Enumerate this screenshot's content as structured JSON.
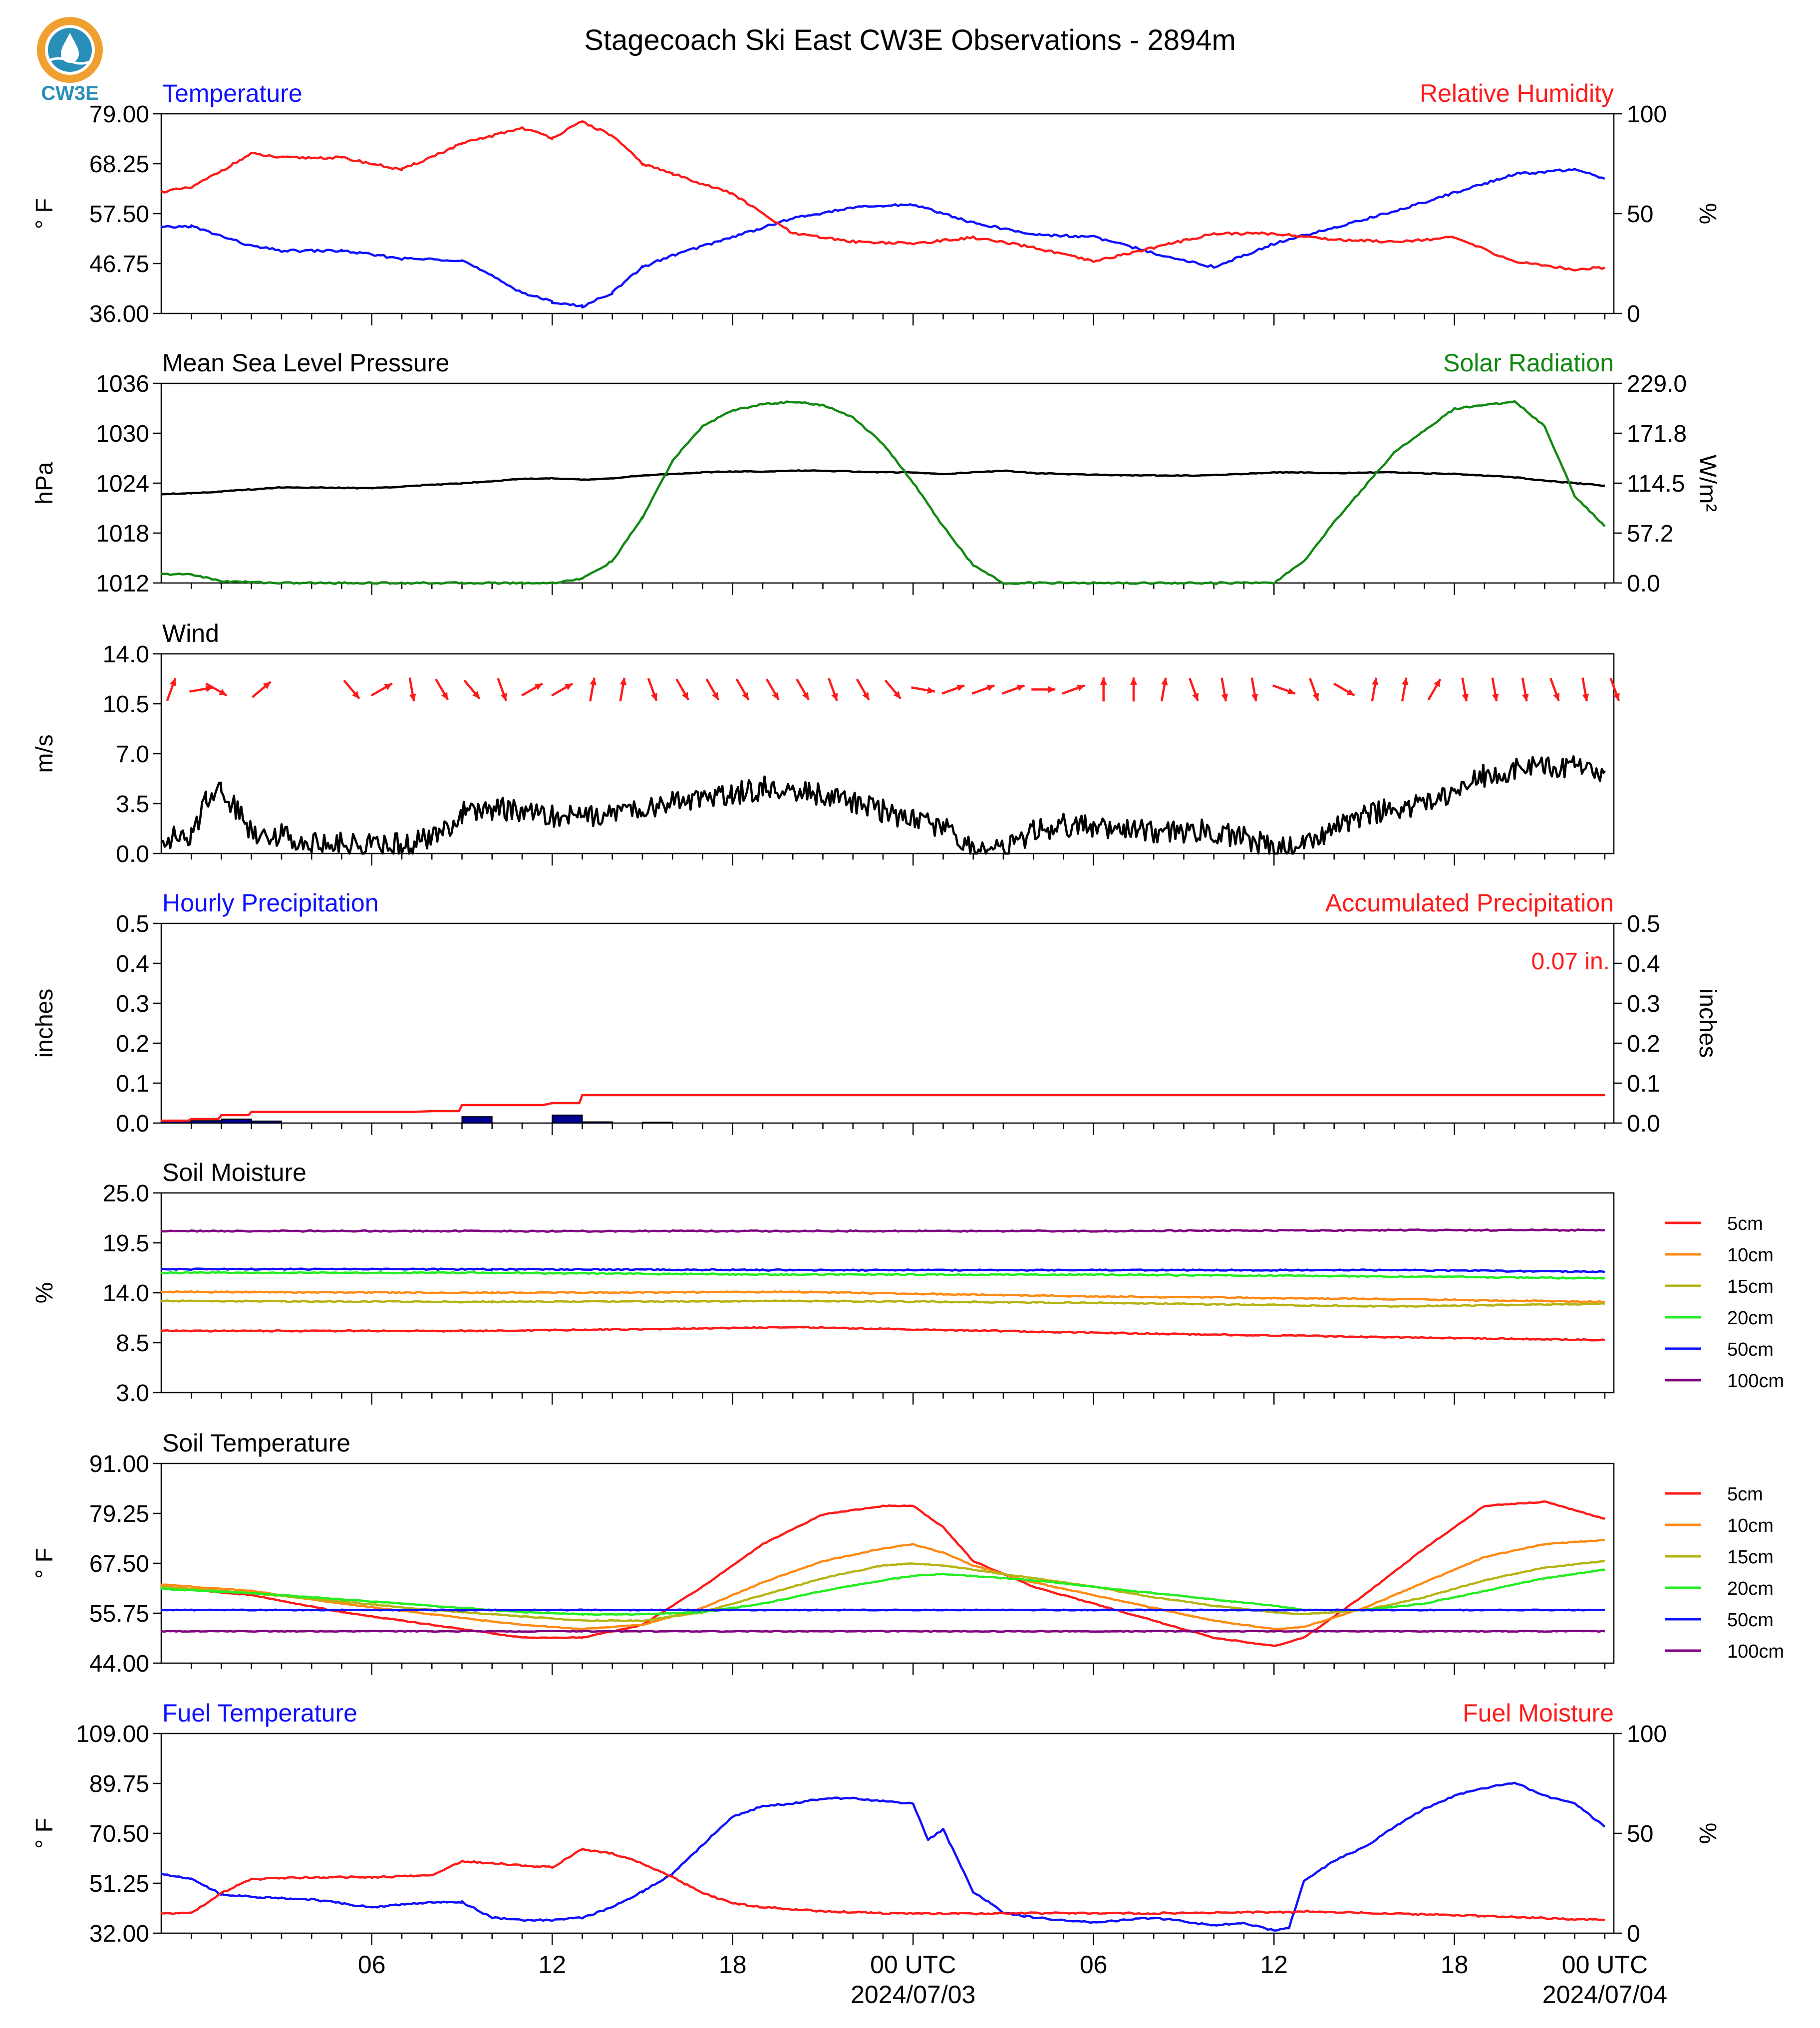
{
  "title": "Stagecoach Ski East CW3E Observations - 2894m",
  "logo": {
    "text": "CW3E",
    "color": "#2a8fb8",
    "accent": "#f0a030"
  },
  "colors": {
    "red": "#ff1a1a",
    "blue": "#1010ff",
    "green": "#118811",
    "black": "#000000",
    "orange": "#ff8a14",
    "olive": "#b4b414",
    "lime": "#22ee22",
    "purple": "#800080",
    "navy": "#000090"
  },
  "time_axis": {
    "tick_labels": [
      "06",
      "12",
      "18",
      "00 UTC",
      "06",
      "12",
      "18",
      "00 UTC"
    ],
    "date_labels": [
      "2024/07/03",
      "2024/07/04"
    ]
  },
  "chart_data": [
    {
      "id": "temp",
      "type": "line",
      "title_left": "Temperature",
      "title_right": "Relative Humidity",
      "ylabel": "° F",
      "ylabel2": "%",
      "yticks": [
        "79.00",
        "68.25",
        "57.50",
        "46.75",
        "36.00"
      ],
      "yticks2": [
        "100",
        "50",
        "0"
      ],
      "ylim": [
        36,
        79
      ],
      "ylim2": [
        0,
        100
      ],
      "x": [
        -1,
        0,
        2,
        3,
        5,
        7,
        9,
        11,
        12,
        13,
        14,
        15,
        16,
        18,
        20,
        22,
        24,
        26,
        28,
        30,
        32,
        34,
        36,
        38,
        40,
        42,
        44,
        46,
        47
      ],
      "series": [
        {
          "name": "Temperature",
          "color": "blue",
          "axis": "left",
          "values": [
            54.5,
            54.8,
            50.5,
            49.5,
            49.5,
            47.8,
            47.5,
            40.5,
            38.5,
            37.5,
            40.5,
            46,
            48.5,
            52.5,
            56.5,
            58.8,
            59.5,
            55.5,
            53,
            52.5,
            49,
            46,
            51,
            54.5,
            58,
            62,
            66,
            67,
            65
          ]
        },
        {
          "name": "Relative Humidity",
          "color": "red",
          "axis": "right",
          "values": [
            61,
            63,
            80,
            78,
            78,
            72,
            85,
            93,
            88,
            96,
            89,
            75,
            70,
            60,
            40,
            36,
            35,
            38,
            33,
            26,
            33,
            40,
            40,
            37,
            36,
            38,
            26,
            22,
            23
          ]
        }
      ]
    },
    {
      "id": "pressure",
      "type": "line",
      "title_left": "Mean Sea Level Pressure",
      "title_right": "Solar Radiation",
      "ylabel": "hPa",
      "ylabel2": "W/m²",
      "yticks": [
        "1036",
        "1030",
        "1024",
        "1018",
        "1012"
      ],
      "yticks2": [
        "229.0",
        "171.8",
        "114.5",
        "57.2",
        "0.0"
      ],
      "ylim": [
        1012,
        1036
      ],
      "ylim2": [
        0,
        229
      ],
      "x": [
        -1,
        0,
        1,
        3,
        6,
        9,
        11,
        12,
        13,
        14,
        15,
        16,
        17,
        18,
        19,
        20,
        21,
        22,
        23,
        24,
        25,
        26,
        27,
        28,
        30,
        33,
        35,
        36,
        37,
        38,
        40,
        42,
        44,
        45,
        46,
        47
      ],
      "series": [
        {
          "name": "Mean Sea Level Pressure",
          "color": "black",
          "axis": "left",
          "values": [
            1022.7,
            1022.8,
            1023,
            1023.5,
            1023.4,
            1024,
            1024.5,
            1024.6,
            1024.4,
            1024.6,
            1024.9,
            1025.1,
            1025.3,
            1025.4,
            1025.4,
            1025.5,
            1025.5,
            1025.4,
            1025.3,
            1025.3,
            1025.1,
            1025.3,
            1025.5,
            1025.2,
            1025,
            1024.9,
            1025.1,
            1025.3,
            1025.3,
            1025.2,
            1025.3,
            1025.1,
            1024.7,
            1024.3,
            1024.0,
            1023.7
          ]
        },
        {
          "name": "Solar Radiation",
          "color": "green",
          "axis": "right",
          "values": [
            10,
            10,
            2,
            0,
            0,
            0,
            0,
            0,
            5,
            25,
            75,
            140,
            180,
            198,
            205,
            208,
            204,
            190,
            160,
            115,
            65,
            20,
            0,
            0,
            0,
            0,
            0,
            0,
            25,
            70,
            150,
            200,
            208,
            180,
            100,
            65
          ]
        }
      ]
    },
    {
      "id": "wind",
      "type": "line",
      "title_left": "Wind",
      "ylabel": "m/s",
      "yticks": [
        "14.0",
        "10.5",
        "7.0",
        "3.5",
        "0.0"
      ],
      "ylim": [
        0,
        14
      ],
      "x": [
        -1,
        0,
        0.5,
        1,
        2,
        3,
        4,
        6,
        7,
        8,
        9,
        10,
        11,
        12,
        13,
        14,
        15,
        16,
        17,
        18,
        19,
        20,
        21,
        22,
        23,
        24,
        25,
        26,
        27,
        28,
        29,
        30,
        31,
        32,
        33,
        34,
        35,
        36,
        37,
        38,
        39,
        40,
        41,
        42,
        43,
        44,
        45,
        46,
        47
      ],
      "series": [
        {
          "name": "Wind Speed",
          "color": "black",
          "values": [
            1.2,
            1.0,
            4.0,
            4.6,
            1.6,
            1.3,
            0.8,
            0.6,
            0.6,
            1.0,
            2.8,
            3.2,
            3.0,
            2.6,
            2.6,
            3.0,
            3.0,
            3.6,
            3.8,
            4.2,
            4.6,
            4.6,
            4.0,
            3.6,
            3.0,
            2.4,
            1.8,
            0.3,
            0.1,
            1.5,
            2.0,
            1.8,
            1.8,
            1.5,
            1.6,
            1.5,
            1.2,
            0.3,
            0.4,
            2.0,
            2.6,
            3.2,
            3.6,
            4.2,
            5.5,
            6.0,
            6.2,
            6.0,
            5.8
          ]
        }
      ],
      "wind_barbs": {
        "description": "direction arrows",
        "x": [
          -1,
          0,
          0.5,
          2,
          5,
          6,
          7,
          8,
          9,
          10,
          11,
          12,
          13,
          14,
          15,
          16,
          17,
          18,
          19,
          20,
          21,
          22,
          23,
          24,
          25,
          26,
          27,
          28,
          29,
          30,
          31,
          32,
          33,
          34,
          35,
          36,
          37,
          38,
          39,
          40,
          41,
          42,
          43,
          44,
          45,
          46,
          47
        ],
        "angles_deg": [
          70,
          10,
          -30,
          40,
          -50,
          30,
          -80,
          -60,
          -50,
          -70,
          30,
          30,
          80,
          80,
          -70,
          -60,
          -60,
          -60,
          -60,
          -60,
          -70,
          -60,
          -50,
          -10,
          20,
          20,
          20,
          0,
          20,
          90,
          90,
          80,
          -70,
          -80,
          -80,
          -20,
          -70,
          -30,
          80,
          80,
          60,
          -80,
          -80,
          -80,
          -70,
          -80,
          -70
        ],
        "y_level": 11.5
      }
    },
    {
      "id": "precip",
      "type": "bar",
      "title_left": "Hourly Precipitation",
      "title_right": "Accumulated Precipitation",
      "total_label": "0.07 in.",
      "ylabel": "inches",
      "ylabel2": "inches",
      "yticks": [
        "0.5",
        "0.4",
        "0.3",
        "0.2",
        "0.1",
        "0.0"
      ],
      "yticks2": [
        "0.5",
        "0.4",
        "0.3",
        "0.2",
        "0.1",
        "0.0"
      ],
      "ylim": [
        0,
        0.5
      ],
      "bars": {
        "x": [
          -1,
          0,
          1,
          2,
          9,
          12,
          13,
          15
        ],
        "values": [
          0.006,
          0.006,
          0.01,
          0.005,
          0.016,
          0.02,
          0.003,
          0.002
        ]
      },
      "accumulated": {
        "x": [
          -1,
          0,
          1,
          2,
          8,
          9,
          12,
          13,
          47
        ],
        "values": [
          0.006,
          0.01,
          0.02,
          0.028,
          0.03,
          0.045,
          0.05,
          0.07,
          0.07
        ]
      }
    },
    {
      "id": "soilmoist",
      "type": "line",
      "title_left": "Soil Moisture",
      "ylabel": "%",
      "yticks": [
        "25.0",
        "19.5",
        "14.0",
        "8.5",
        "3.0"
      ],
      "ylim": [
        3,
        25
      ],
      "legend": [
        "5cm",
        "10cm",
        "15cm",
        "20cm",
        "50cm",
        "100cm"
      ],
      "x": [
        -1,
        10,
        20,
        30,
        40,
        47
      ],
      "series": [
        {
          "name": "5cm",
          "color": "red",
          "values": [
            9.8,
            9.8,
            10.2,
            9.6,
            9.1,
            8.8
          ]
        },
        {
          "name": "10cm",
          "color": "orange",
          "values": [
            14.1,
            14.0,
            14.1,
            13.6,
            13.3,
            13.0
          ]
        },
        {
          "name": "15cm",
          "color": "olive",
          "values": [
            13.1,
            13.0,
            13.1,
            12.9,
            12.5,
            12.8
          ]
        },
        {
          "name": "20cm",
          "color": "lime",
          "values": [
            16.2,
            16.2,
            16.0,
            16.0,
            15.8,
            15.6
          ]
        },
        {
          "name": "50cm",
          "color": "blue",
          "values": [
            16.6,
            16.6,
            16.5,
            16.5,
            16.5,
            16.3
          ]
        },
        {
          "name": "100cm",
          "color": "purple",
          "values": [
            20.8,
            20.8,
            20.8,
            20.8,
            20.9,
            20.9
          ]
        }
      ]
    },
    {
      "id": "soiltemp",
      "type": "line",
      "title_left": "Soil Temperature",
      "ylabel": "° F",
      "yticks": [
        "91.00",
        "79.25",
        "67.50",
        "55.75",
        "44.00"
      ],
      "ylim": [
        44,
        91
      ],
      "legend": [
        "5cm",
        "10cm",
        "15cm",
        "20cm",
        "50cm",
        "100cm"
      ],
      "x": [
        -1,
        2,
        5,
        8,
        11,
        13,
        15,
        17,
        19,
        21,
        23,
        24,
        25,
        26,
        28,
        30,
        32,
        34,
        36,
        37,
        39,
        41,
        43,
        45,
        47
      ],
      "series": [
        {
          "name": "5cm",
          "color": "red",
          "values": [
            62,
            60,
            56,
            53,
            50,
            50,
            53,
            62,
            72,
            79,
            81,
            81,
            76,
            68,
            62,
            58,
            54,
            50,
            48,
            50,
            60,
            71,
            81,
            82,
            78
          ]
        },
        {
          "name": "10cm",
          "color": "orange",
          "values": [
            62.5,
            61,
            58,
            55.5,
            53,
            52,
            53,
            57,
            63,
            68,
            71,
            72,
            70,
            67,
            63,
            60,
            57,
            54,
            52,
            52.5,
            57,
            63,
            69,
            72,
            73
          ]
        },
        {
          "name": "15cm",
          "color": "olive",
          "values": [
            62,
            60.5,
            58.5,
            56.5,
            55,
            54,
            54,
            56,
            60,
            64,
            67,
            67.5,
            67,
            66,
            64,
            62,
            59.5,
            57.5,
            56,
            55.5,
            56.5,
            59.5,
            63.5,
            66.5,
            68
          ]
        },
        {
          "name": "20cm",
          "color": "lime",
          "values": [
            61.5,
            60.5,
            59,
            57.5,
            56,
            55.5,
            55.5,
            56,
            58,
            61,
            63.5,
            64.5,
            65,
            64.5,
            63.5,
            62,
            60.5,
            59,
            57.5,
            56.5,
            56.5,
            58,
            61,
            64,
            66
          ]
        },
        {
          "name": "50cm",
          "color": "blue",
          "values": [
            56.5,
            56.5,
            56.5,
            56.5,
            56.5,
            56.5,
            56.5,
            56.5,
            56.5,
            56.5,
            56.5,
            56.5,
            56.5,
            56.5,
            56.5,
            56.5,
            56.5,
            56.5,
            56.5,
            56.5,
            56.5,
            56.5,
            56.5,
            56.5,
            56.5
          ]
        },
        {
          "name": "100cm",
          "color": "purple",
          "values": [
            51.5,
            51.5,
            51.5,
            51.5,
            51.5,
            51.5,
            51.5,
            51.5,
            51.5,
            51.5,
            51.5,
            51.5,
            51.5,
            51.5,
            51.5,
            51.5,
            51.5,
            51.5,
            51.5,
            51.5,
            51.5,
            51.5,
            51.5,
            51.5,
            51.5
          ]
        }
      ]
    },
    {
      "id": "fuel",
      "type": "line",
      "title_left": "Fuel Temperature",
      "title_right": "Fuel Moisture",
      "ylabel": "° F",
      "ylabel2": "%",
      "yticks": [
        "109.00",
        "89.75",
        "70.50",
        "51.25",
        "32.00"
      ],
      "yticks2": [
        "100",
        "50",
        "0"
      ],
      "ylim": [
        32,
        109
      ],
      "ylim2": [
        0,
        100
      ],
      "x": [
        -1,
        0,
        1,
        2,
        4,
        6,
        8,
        9,
        10,
        11,
        12,
        13,
        14,
        15,
        16,
        17,
        18,
        19,
        20,
        21,
        22,
        23,
        24,
        24.5,
        25,
        25.5,
        26,
        27,
        28,
        30,
        32,
        34,
        35,
        36,
        36.5,
        37,
        38,
        39,
        40,
        41,
        42,
        43,
        44,
        45,
        46,
        47
      ],
      "series": [
        {
          "name": "Fuel Temperature",
          "color": "blue",
          "axis": "left",
          "values": [
            55,
            53,
            47,
            46,
            45,
            42,
            44,
            44,
            38,
            37,
            37,
            38,
            42,
            48,
            55,
            66,
            77,
            81,
            82,
            84,
            84,
            83,
            82,
            68,
            72,
            60,
            48,
            40,
            38,
            36,
            38,
            35,
            36,
            33,
            34,
            52,
            60,
            65,
            73,
            80,
            85,
            88,
            90,
            85,
            82,
            73
          ]
        },
        {
          "name": "Fuel Moisture",
          "color": "red",
          "axis": "right",
          "values": [
            10,
            10,
            20,
            27,
            28,
            28,
            29,
            36,
            35,
            34,
            33,
            42,
            40,
            35,
            28,
            20,
            15,
            13,
            12,
            11,
            10.5,
            10,
            9.8,
            9.8,
            9.8,
            9.8,
            9.8,
            9.8,
            10,
            10,
            10,
            10.2,
            10.4,
            10.5,
            10.5,
            11,
            10.6,
            10.2,
            9.8,
            9.4,
            9,
            8.5,
            8,
            7.5,
            7,
            6.5
          ]
        }
      ]
    }
  ]
}
